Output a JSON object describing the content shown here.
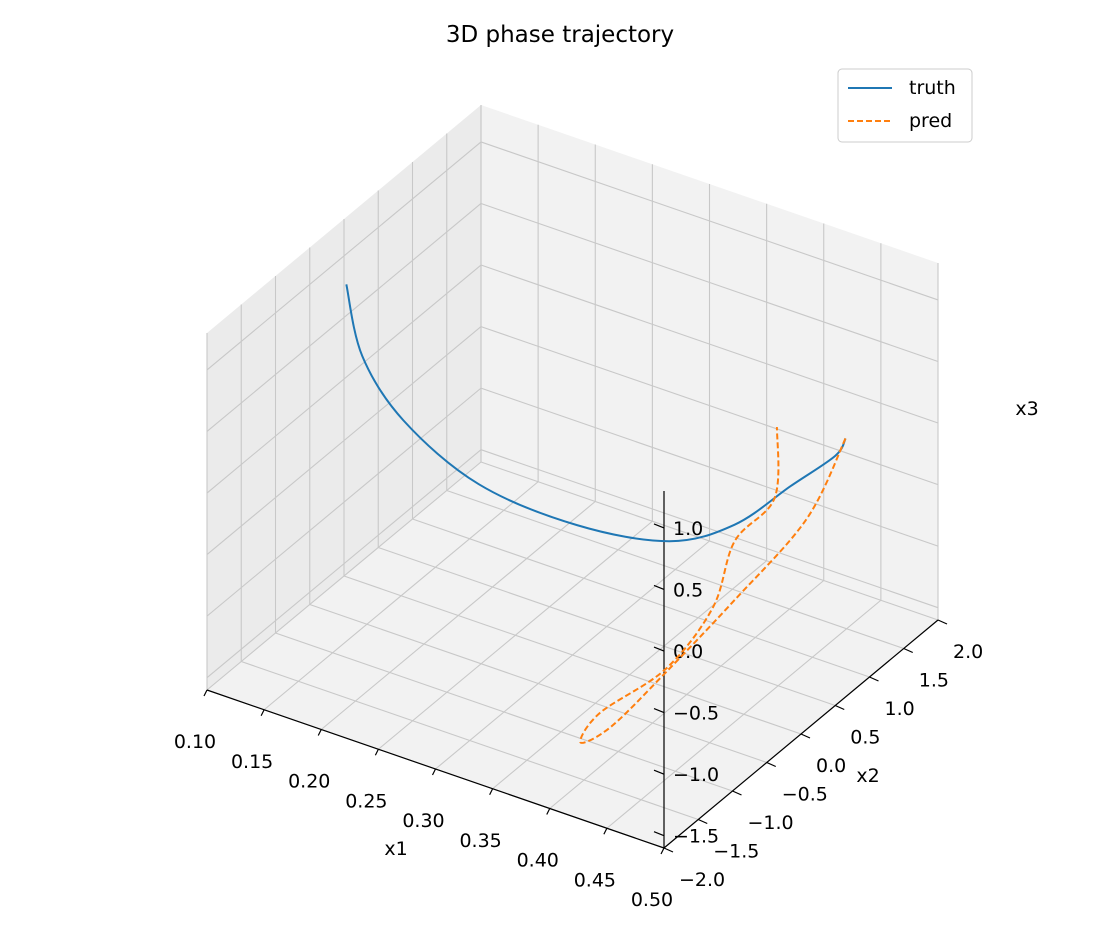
{
  "chart_data": {
    "type": "line",
    "projection": "3d",
    "title": "3D phase trajectory",
    "xlabel": "x1",
    "ylabel": "x2",
    "zlabel": "x3",
    "xlim": [
      0.1,
      0.5
    ],
    "ylim": [
      -2.0,
      2.0
    ],
    "zlim": [
      -1.6,
      1.3
    ],
    "xticks": [
      "0.10",
      "0.15",
      "0.20",
      "0.25",
      "0.30",
      "0.35",
      "0.40",
      "0.45",
      "0.50"
    ],
    "yticks": [
      "−2.0",
      "−1.5",
      "−1.0",
      "−0.5",
      "0.0",
      "0.5",
      "1.0",
      "1.5",
      "2.0"
    ],
    "zticks": [
      "−1.5",
      "−1.0",
      "−0.5",
      "0.0",
      "0.5",
      "1.0"
    ],
    "grid": true,
    "legend_position": "top-right",
    "series": [
      {
        "name": "truth",
        "color": "#1f77b4",
        "style": "solid",
        "points": [
          [
            0.15,
            -0.8,
            1.3
          ],
          [
            0.14,
            -0.4,
            0.5
          ],
          [
            0.14,
            0.2,
            -0.3
          ],
          [
            0.17,
            0.8,
            -1.0
          ],
          [
            0.22,
            1.4,
            -1.45
          ],
          [
            0.28,
            1.75,
            -1.55
          ],
          [
            0.34,
            1.7,
            -1.2
          ],
          [
            0.41,
            1.35,
            -0.5
          ],
          [
            0.47,
            1.0,
            0.1
          ],
          [
            0.5,
            0.65,
            0.5
          ]
        ]
      },
      {
        "name": "pred",
        "color": "#ff7f0e",
        "style": "dashed",
        "points": [
          [
            0.5,
            0.65,
            0.5
          ],
          [
            0.49,
            0.25,
            0.0
          ],
          [
            0.46,
            -0.3,
            -0.5
          ],
          [
            0.43,
            -0.8,
            -0.95
          ],
          [
            0.4,
            -1.1,
            -1.35
          ],
          [
            0.37,
            -1.05,
            -1.6
          ],
          [
            0.36,
            -0.6,
            -1.6
          ],
          [
            0.4,
            -0.3,
            -1.25
          ],
          [
            0.42,
            0.05,
            -0.85
          ],
          [
            0.43,
            0.2,
            -0.35
          ],
          [
            0.45,
            0.45,
            -0.05
          ],
          [
            0.44,
            0.65,
            0.4
          ]
        ]
      }
    ]
  }
}
